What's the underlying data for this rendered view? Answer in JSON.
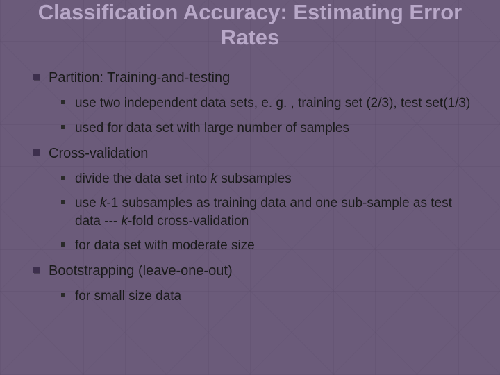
{
  "slide": {
    "title": "Classification Accuracy: Estimating Error Rates",
    "title_fontsize": 31,
    "title_color": "#b8a8c8",
    "body_fontsize": 20,
    "sub_fontsize": 19,
    "text_color": "#1a1a1a",
    "background_color": "#6b5b7a",
    "bullets": [
      {
        "text": "Partition: Training-and-testing",
        "subs": [
          {
            "text": "use two independent data sets, e. g. , training set (2/3), test set(1/3)"
          },
          {
            "text": "used for data set with large number of samples"
          }
        ]
      },
      {
        "text": "Cross-validation",
        "subs": [
          {
            "prefix": "divide the data set into ",
            "italic": "k",
            "suffix": " subsamples"
          },
          {
            "prefix": "use ",
            "italic": "k",
            "mid": "-1 subsamples as training data and one sub-sample as test data --- ",
            "italic2": "k",
            "suffix": "-fold cross-validation"
          },
          {
            "text": "for data set with moderate size"
          }
        ]
      },
      {
        "text": "Bootstrapping (leave-one-out)",
        "subs": [
          {
            "text": "for small size data"
          }
        ]
      }
    ]
  }
}
